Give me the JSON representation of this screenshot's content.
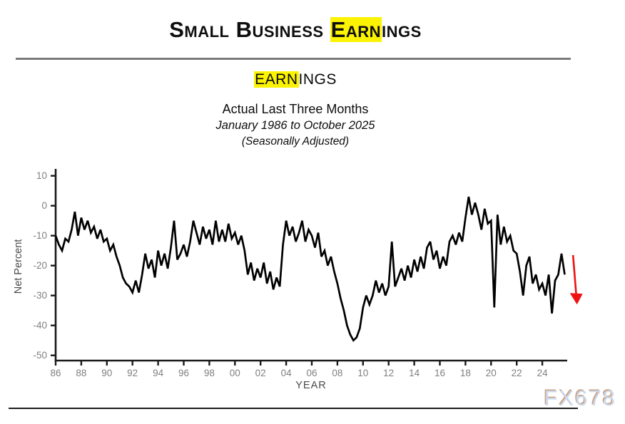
{
  "header": {
    "title_pre": "Small Business ",
    "title_highlight": "Earn",
    "title_post": "ings",
    "subtitle_highlight": "EARN",
    "subtitle_post": "INGS",
    "caption_line1": "Actual Last Three Months",
    "caption_line2": "January 1986 to October 2025",
    "caption_line3": "(Seasonally Adjusted)"
  },
  "watermark_text": "FX678",
  "colors": {
    "highlight": "#fcf303",
    "series_line": "#000000",
    "arrow": "#ee1212",
    "axis": "#1a1a1a",
    "tick_label": "#7f7f7f",
    "axis_title": "#4a4a4a",
    "watermark": "#ccd9eb",
    "watermark_shadow": "#c9a183"
  },
  "chart_data": {
    "type": "line",
    "title": "Small Business Earnings",
    "subtitle": "Actual Last Three Months — January 1986 to October 2025 (Seasonally Adjusted)",
    "xlabel": "YEAR",
    "ylabel": "Net Percent",
    "grid": false,
    "legend": null,
    "xlim": [
      1986,
      2026.2
    ],
    "ylim": [
      -50,
      10
    ],
    "y_ticks": [
      10,
      0,
      -10,
      -20,
      -30,
      -40,
      -50
    ],
    "x_tick_start": 1986,
    "x_tick_step": 2,
    "x_tick_labels": [
      "86",
      "88",
      "90",
      "92",
      "94",
      "96",
      "98",
      "00",
      "02",
      "04",
      "06",
      "08",
      "10",
      "12",
      "14",
      "16",
      "18",
      "20",
      "22",
      "24"
    ],
    "x_start": 1986,
    "x_step": 0.25,
    "x_end": 2025.75,
    "values": [
      -10,
      -13,
      -15,
      -11,
      -12,
      -8,
      -2,
      -10,
      -4,
      -8,
      -5,
      -9,
      -7,
      -11,
      -8,
      -12,
      -11,
      -15,
      -13,
      -17,
      -20,
      -24,
      -26,
      -27,
      -29,
      -25,
      -29,
      -23,
      -16,
      -21,
      -18,
      -24,
      -15,
      -20,
      -16,
      -21,
      -14,
      -5,
      -18,
      -16,
      -13,
      -17,
      -12,
      -5,
      -9,
      -13,
      -7,
      -11,
      -8,
      -13,
      -5,
      -12,
      -8,
      -12,
      -6,
      -11,
      -9,
      -13,
      -10,
      -15,
      -23,
      -19,
      -25,
      -21,
      -24,
      -19,
      -26,
      -22,
      -28,
      -24,
      -27,
      -13,
      -5,
      -10,
      -7,
      -12,
      -9,
      -5,
      -12,
      -8,
      -10,
      -14,
      -9,
      -17,
      -15,
      -20,
      -17,
      -22,
      -26,
      -31,
      -35,
      -40,
      -43,
      -45,
      -44,
      -41,
      -34,
      -30,
      -33,
      -30,
      -25,
      -29,
      -26,
      -30,
      -27,
      -12,
      -27,
      -24,
      -21,
      -25,
      -20,
      -24,
      -18,
      -22,
      -17,
      -21,
      -14,
      -12,
      -18,
      -15,
      -21,
      -17,
      -20,
      -12,
      -10,
      -13,
      -9,
      -12,
      -4,
      3,
      -3,
      1,
      -3,
      -8,
      -1,
      -6,
      -5,
      -34,
      -3,
      -13,
      -7,
      -12,
      -10,
      -15,
      -16,
      -22,
      -30,
      -20,
      -17,
      -26,
      -23,
      -28,
      -26,
      -30,
      -23,
      -36,
      -25,
      -23,
      -16,
      -23
    ],
    "annotation": {
      "type": "down-arrow",
      "meaning": "latest reading declining",
      "color": "#ee1212",
      "x_year": 2026.4,
      "y_from": -16.5,
      "y_to": -33
    }
  }
}
